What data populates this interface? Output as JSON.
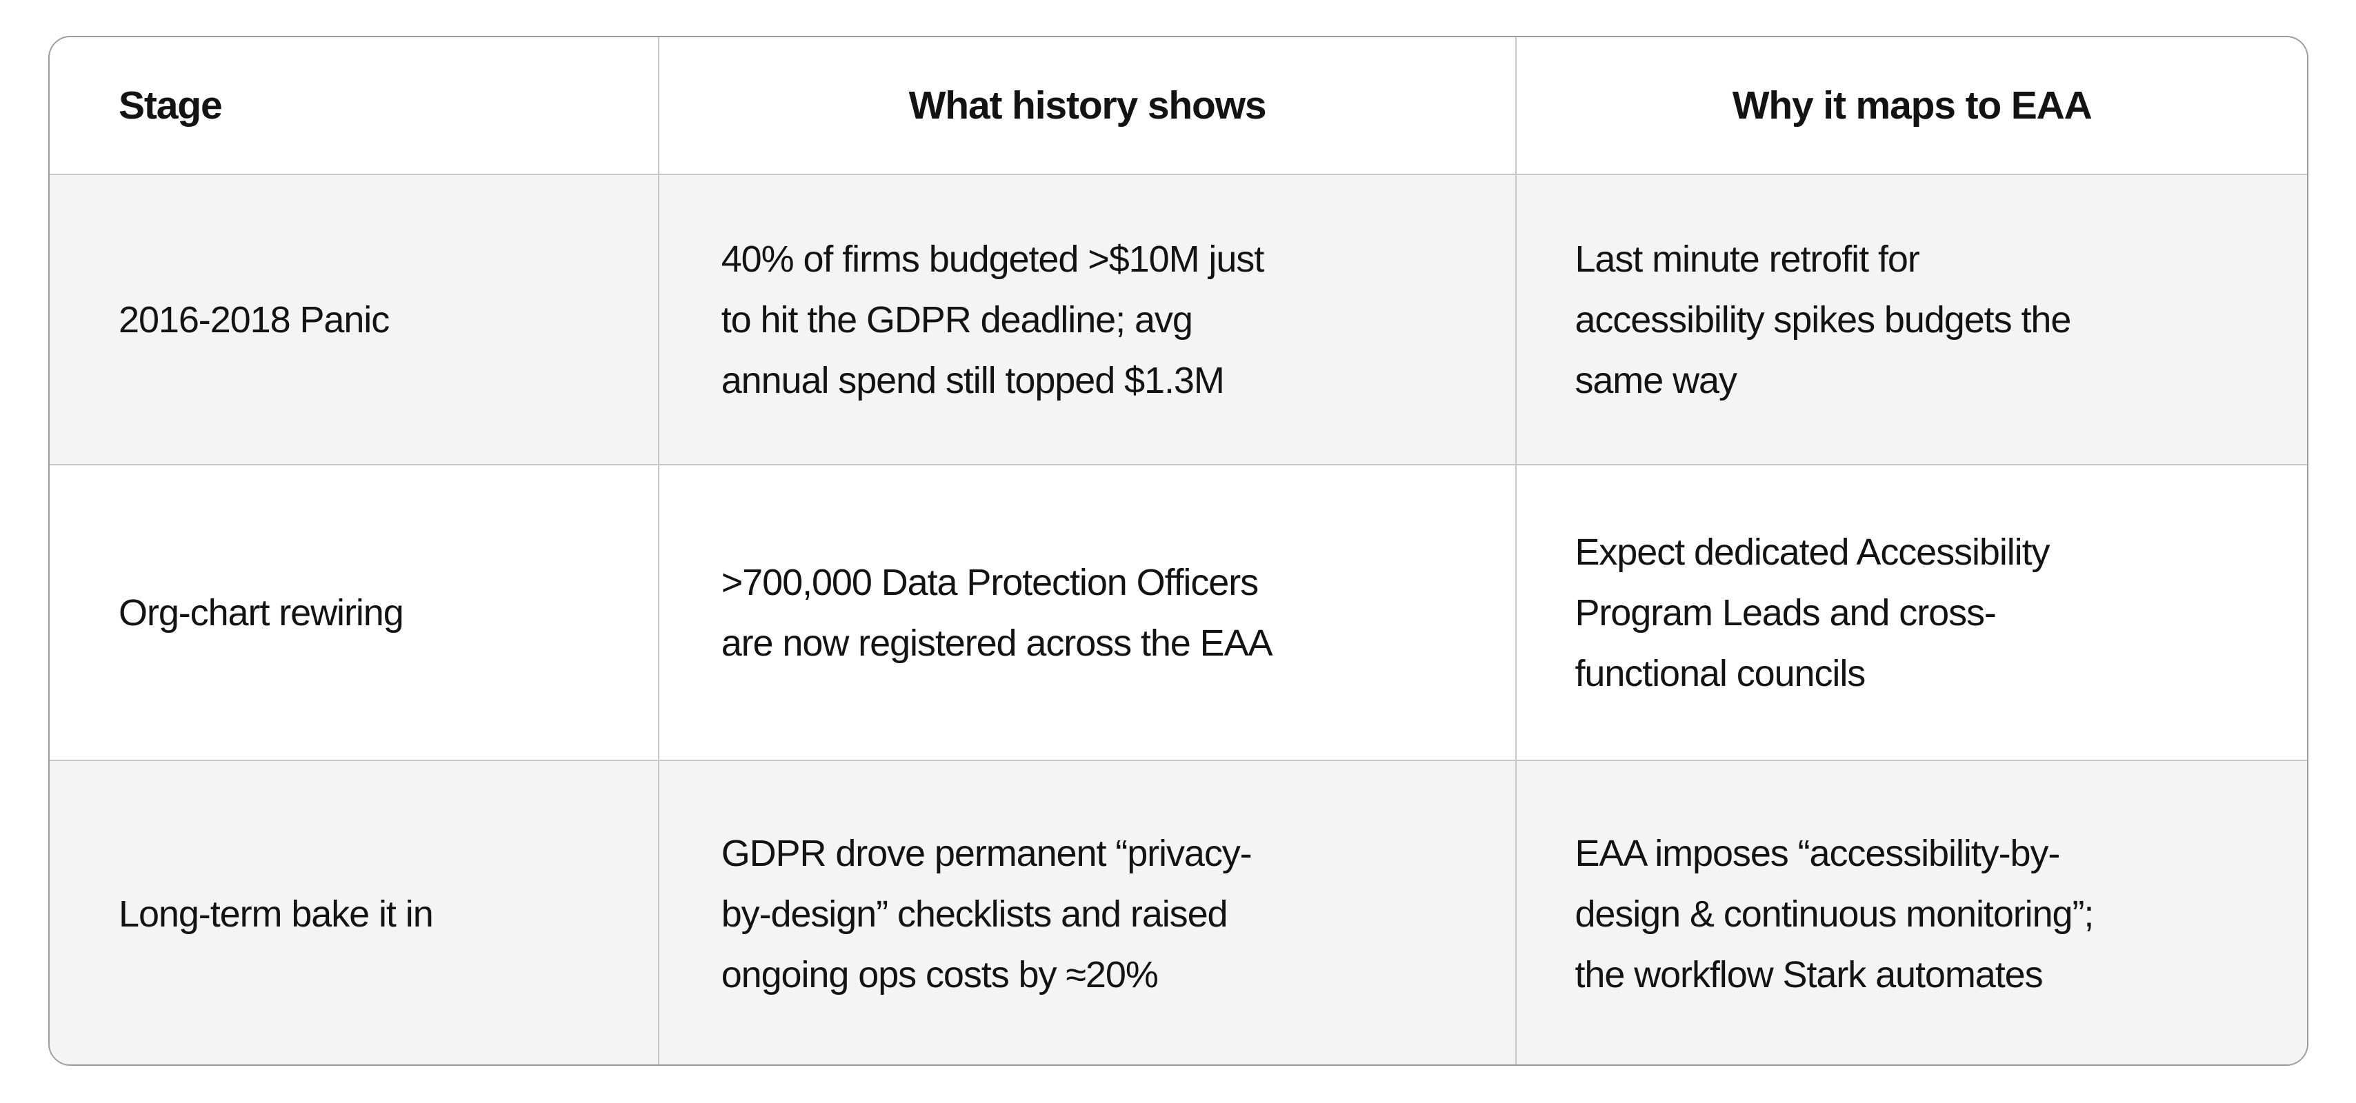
{
  "table": {
    "columns": [
      {
        "label": "Stage"
      },
      {
        "label": "What history shows"
      },
      {
        "label": "Why it maps to EAA"
      }
    ],
    "rows": [
      {
        "stage": "2016-2018 Panic",
        "history": "40% of firms budgeted >$10M just\nto hit the GDPR deadline; avg\nannual spend still topped $1.3M",
        "eaa": "Last minute retrofit for\naccessibility spikes budgets the\nsame way"
      },
      {
        "stage": "Org-chart rewiring",
        "history": ">700,000 Data Protection Officers\nare now registered across the EAA",
        "eaa": "Expect dedicated Accessibility\nProgram Leads and cross-\nfunctional councils"
      },
      {
        "stage": "Long-term bake it in",
        "history": "GDPR drove permanent “privacy-\nby-design” checklists and raised\nongoing ops costs by ≈20%",
        "eaa": "EAA imposes “accessibility-by-\ndesign & continuous monitoring”;\nthe workflow Stark automates"
      }
    ],
    "colors": {
      "zebra_row_bg": "#f4f4f5",
      "row_bg": "#ffffff",
      "border": "#c8c8c8",
      "outer_border": "#9c9c9c",
      "text": "#131313"
    }
  }
}
